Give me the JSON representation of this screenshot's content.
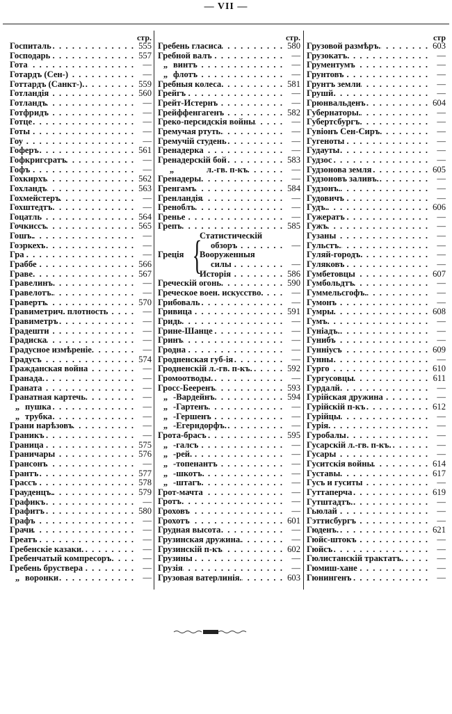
{
  "page_header": "— VII —",
  "columns": [
    {
      "header": "стр.",
      "rows": [
        {
          "t": "Госпиталь",
          "p": "555"
        },
        {
          "t": "Господарь",
          "p": "557"
        },
        {
          "t": "Гота",
          "p": "—"
        },
        {
          "t": "Готардъ (Сен-)",
          "p": "—"
        },
        {
          "t": "Готтардъ (Санкт-).",
          "p": "559"
        },
        {
          "t": "Готландія",
          "p": "560"
        },
        {
          "t": "Готландъ",
          "p": "—"
        },
        {
          "t": "Готфридъ",
          "p": "—"
        },
        {
          "t": "Готце",
          "p": "—"
        },
        {
          "t": "Готы",
          "p": "—"
        },
        {
          "t": "Гоу",
          "p": "—"
        },
        {
          "t": "Гоферъ",
          "p": "561"
        },
        {
          "t": "Гофкригсратъ",
          "p": "—"
        },
        {
          "t": "Гофъ",
          "p": "—"
        },
        {
          "t": "Гохкирхъ",
          "p": "562"
        },
        {
          "t": "Гохландъ",
          "p": "563"
        },
        {
          "t": "Гохмейстеръ",
          "p": "—"
        },
        {
          "t": "Гохштедтъ.",
          "p": "—"
        },
        {
          "t": "Гоцатль",
          "p": "564"
        },
        {
          "t": "Гочкиссъ",
          "p": "565"
        },
        {
          "t": "Гошъ.",
          "p": "—"
        },
        {
          "t": "Гоэркехъ",
          "p": "—"
        },
        {
          "t": "Гра",
          "p": "—"
        },
        {
          "t": "Граббе",
          "p": "566"
        },
        {
          "t": "Граве",
          "p": "567"
        },
        {
          "t": "Гравелинъ.",
          "p": "—"
        },
        {
          "t": "Гравелотъ.",
          "p": "—"
        },
        {
          "t": "Гравертъ",
          "p": "570"
        },
        {
          "t": "Гравиметрич. плотность",
          "p": "—"
        },
        {
          "t": "Гравиметръ",
          "p": "—"
        },
        {
          "t": "Градешти",
          "p": "—"
        },
        {
          "t": "Градиска",
          "p": "—"
        },
        {
          "t": "Градусное измѣреніе.",
          "p": "—"
        },
        {
          "t": "Градусъ",
          "p": "574"
        },
        {
          "t": "Гражданская война",
          "p": "—"
        },
        {
          "t": "Гранада.",
          "p": "—"
        },
        {
          "t": "Граната",
          "p": "—"
        },
        {
          "t": "Гранатная картечь",
          "p": "—"
        },
        {
          "t": "пушка",
          "p": "—",
          "ditto": "„"
        },
        {
          "t": "трубка",
          "p": "—",
          "ditto": "„"
        },
        {
          "t": "Грани нарѣзовъ",
          "p": "—"
        },
        {
          "t": "Граникъ",
          "p": "—"
        },
        {
          "t": "Граница",
          "p": "575"
        },
        {
          "t": "Граничары",
          "p": "576"
        },
        {
          "t": "Грансонъ",
          "p": "—"
        },
        {
          "t": "Грантъ",
          "p": "577"
        },
        {
          "t": "Грассъ",
          "p": "578"
        },
        {
          "t": "Грауденцъ.",
          "p": "579"
        },
        {
          "t": "Графикъ",
          "p": "—"
        },
        {
          "t": "Графитъ",
          "p": "580"
        },
        {
          "t": "Графъ",
          "p": "—"
        },
        {
          "t": "Грачи",
          "p": "—"
        },
        {
          "t": "Греатъ",
          "p": "—"
        },
        {
          "t": "Гребенскіе казаки.",
          "p": "—"
        },
        {
          "t": "Гребенчатый компресоръ",
          "p": "—"
        },
        {
          "t": "Гребень бруствера",
          "p": "—"
        },
        {
          "t": "воронки",
          "p": "—",
          "ditto": "„"
        }
      ]
    },
    {
      "header": "стр.",
      "rows": [
        {
          "t": "Гребень гласиса",
          "p": "580"
        },
        {
          "t": "Гребной валъ",
          "p": "—"
        },
        {
          "t": "винтъ",
          "p": "—",
          "ditto": "„"
        },
        {
          "t": "флотъ",
          "p": "—",
          "ditto": "„"
        },
        {
          "t": "Гребныя колеса.",
          "p": "581"
        },
        {
          "t": "Грейгъ",
          "p": "—"
        },
        {
          "t": "Грейт-Истернъ",
          "p": "—"
        },
        {
          "t": "Грейффенгагенъ",
          "p": "582"
        },
        {
          "t": "Греко-персидскія войны",
          "p": "—"
        },
        {
          "t": "Гремучая ртуть.",
          "p": "—"
        },
        {
          "t": "Гремучій студень",
          "p": "—"
        },
        {
          "t": "Гренадерка",
          "p": "—"
        },
        {
          "t": "Гренадерскій бой",
          "p": "583"
        },
        {
          "t": "л.-гв. п-къ",
          "p": "—",
          "ditto": "„",
          "wide": true
        },
        {
          "t": "Гренадеры.",
          "p": "—"
        },
        {
          "t": "Гренгамъ",
          "p": "584"
        },
        {
          "t": "Гренландія",
          "p": "—"
        },
        {
          "t": "Греноблъ",
          "p": "—"
        },
        {
          "t": "Гренье",
          "p": "—"
        },
        {
          "t": "Грепъ",
          "p": "585"
        },
        {
          "group": "Греція",
          "lines": [
            {
              "t": "Статистическій",
              "p": ""
            },
            {
              "t": "обзоръ",
              "p": "—",
              "sub": true
            },
            {
              "t": "Вооруженныя",
              "p": ""
            },
            {
              "t": "силы",
              "p": "—",
              "sub": true
            },
            {
              "t": "Исторія",
              "p": "586"
            }
          ]
        },
        {
          "t": "Греческій огонь",
          "p": "590"
        },
        {
          "t": "Греческое воен. искусство.",
          "p": "—"
        },
        {
          "t": "Грибоваль",
          "p": "—"
        },
        {
          "t": "Гривица",
          "p": "591"
        },
        {
          "t": "Гридь",
          "p": "—"
        },
        {
          "t": "Грине-Шанце",
          "p": "—"
        },
        {
          "t": "Гринъ",
          "p": "—"
        },
        {
          "t": "Гродна",
          "p": "—"
        },
        {
          "t": "Гродненская губ-ія",
          "p": "—"
        },
        {
          "t": "Гродненскій л.-гв. п-къ.",
          "p": "592"
        },
        {
          "t": "Громоотводы.",
          "p": "—"
        },
        {
          "t": "Гросс-Бееренъ",
          "p": "593"
        },
        {
          "t": "-Вардейнъ.",
          "p": "594",
          "ditto": "„"
        },
        {
          "t": "-Гартенъ",
          "p": "—",
          "ditto": "„"
        },
        {
          "t": "-Гершенъ",
          "p": "—",
          "ditto": "„"
        },
        {
          "t": "-Егерндорфъ.",
          "p": "—",
          "ditto": "„"
        },
        {
          "t": "Грота-брасъ",
          "p": "595"
        },
        {
          "t": "-галсъ",
          "p": "—",
          "ditto": "„"
        },
        {
          "t": "-рей.",
          "p": "—",
          "ditto": "„"
        },
        {
          "t": "-топенантъ",
          "p": "—",
          "ditto": "„"
        },
        {
          "t": "-шкотъ.",
          "p": "—",
          "ditto": "„"
        },
        {
          "t": "-штагъ.",
          "p": "—",
          "ditto": "„"
        },
        {
          "t": "Грот-мачта",
          "p": "—"
        },
        {
          "t": "Гротъ",
          "p": "—"
        },
        {
          "t": "Гроховъ",
          "p": "—"
        },
        {
          "t": "Грохотъ",
          "p": "601"
        },
        {
          "t": "Грудная высота",
          "p": "—"
        },
        {
          "t": "Грузинская дружина.",
          "p": "—"
        },
        {
          "t": "Грузинскій п-къ",
          "p": "602"
        },
        {
          "t": "Грузины",
          "p": "—"
        },
        {
          "t": "Грузія",
          "p": "—"
        },
        {
          "t": "Грузовая ватерлинія.",
          "p": "603"
        }
      ]
    },
    {
      "header": "стр",
      "rows": [
        {
          "t": "Грузовой размѣръ.",
          "p": "603"
        },
        {
          "t": "Грузокатъ.",
          "p": "—"
        },
        {
          "t": "Грументумъ",
          "p": "—"
        },
        {
          "t": "Грунтовъ",
          "p": "—"
        },
        {
          "t": "Грунтъ земли",
          "p": "—"
        },
        {
          "t": "Грушй",
          "p": "—"
        },
        {
          "t": "Грюнвальденъ",
          "p": "604"
        },
        {
          "t": "Губернаторы.",
          "p": "—"
        },
        {
          "t": "Губертсбургъ.",
          "p": "—"
        },
        {
          "t": "Гувіонъ Сен-Сиръ.",
          "p": "—"
        },
        {
          "t": "Гугеноты",
          "p": "—"
        },
        {
          "t": "Гудауты",
          "p": "—"
        },
        {
          "t": "Гудзос",
          "p": "—"
        },
        {
          "t": "Гудзонова земля",
          "p": "605"
        },
        {
          "t": "Гудзоновъ заливъ.",
          "p": "—"
        },
        {
          "t": "Гудзонъ.",
          "p": "—"
        },
        {
          "t": "Гудовичъ",
          "p": "—"
        },
        {
          "t": "Гудъ.",
          "p": "606"
        },
        {
          "t": "Гужератъ",
          "p": "—"
        },
        {
          "t": "Гужъ",
          "p": "—"
        },
        {
          "t": "Гузаны",
          "p": "—"
        },
        {
          "t": "Гульстъ.",
          "p": "—"
        },
        {
          "t": "Гуляй-городъ.",
          "p": "—"
        },
        {
          "t": "Гуляковъ",
          "p": "—"
        },
        {
          "t": "Гумбетовцы",
          "p": "607"
        },
        {
          "t": "Гумбольдтъ",
          "p": "—"
        },
        {
          "t": "Гуммельсгофъ.",
          "p": "—"
        },
        {
          "t": "Гумонъ",
          "p": "—"
        },
        {
          "t": "Гумры",
          "p": "608"
        },
        {
          "t": "Гумъ.",
          "p": "—"
        },
        {
          "t": "Гуніадъ.",
          "p": "—"
        },
        {
          "t": "Гунибъ",
          "p": "—"
        },
        {
          "t": "Гунніусъ",
          "p": "609"
        },
        {
          "t": "Гунны",
          "p": "—"
        },
        {
          "t": "Гурго",
          "p": "610"
        },
        {
          "t": "Гургусовцы",
          "p": "611"
        },
        {
          "t": "Гурдалй",
          "p": "—"
        },
        {
          "t": "Гурійская дружина",
          "p": "—"
        },
        {
          "t": "Гурійскій п-къ",
          "p": "612"
        },
        {
          "t": "Гурійцы",
          "p": "—"
        },
        {
          "t": "Гурія.",
          "p": "—"
        },
        {
          "t": "Гуробалы",
          "p": "—"
        },
        {
          "t": "Гусарскій л.-гв. п-къ.",
          "p": "—"
        },
        {
          "t": "Гусары",
          "p": "—"
        },
        {
          "t": "Гуситскія войны",
          "p": "614"
        },
        {
          "t": "Густавы",
          "p": "617"
        },
        {
          "t": "Гусъ и гуситы",
          "p": "—"
        },
        {
          "t": "Гуттаперча",
          "p": "619"
        },
        {
          "t": "Гутштадтъ.",
          "p": "—"
        },
        {
          "t": "Гьюлай",
          "p": "—"
        },
        {
          "t": "Гэттисбургъ",
          "p": "—"
        },
        {
          "t": "Гюденъ.",
          "p": "621"
        },
        {
          "t": "Гюйс-штокъ",
          "p": "—"
        },
        {
          "t": "Гюйсъ",
          "p": "—"
        },
        {
          "t": "Гюлистанскій трактатъ.",
          "p": "—"
        },
        {
          "t": "Гюмиш-хане",
          "p": "—"
        },
        {
          "t": "Гюнингенъ",
          "p": "—"
        }
      ]
    }
  ]
}
